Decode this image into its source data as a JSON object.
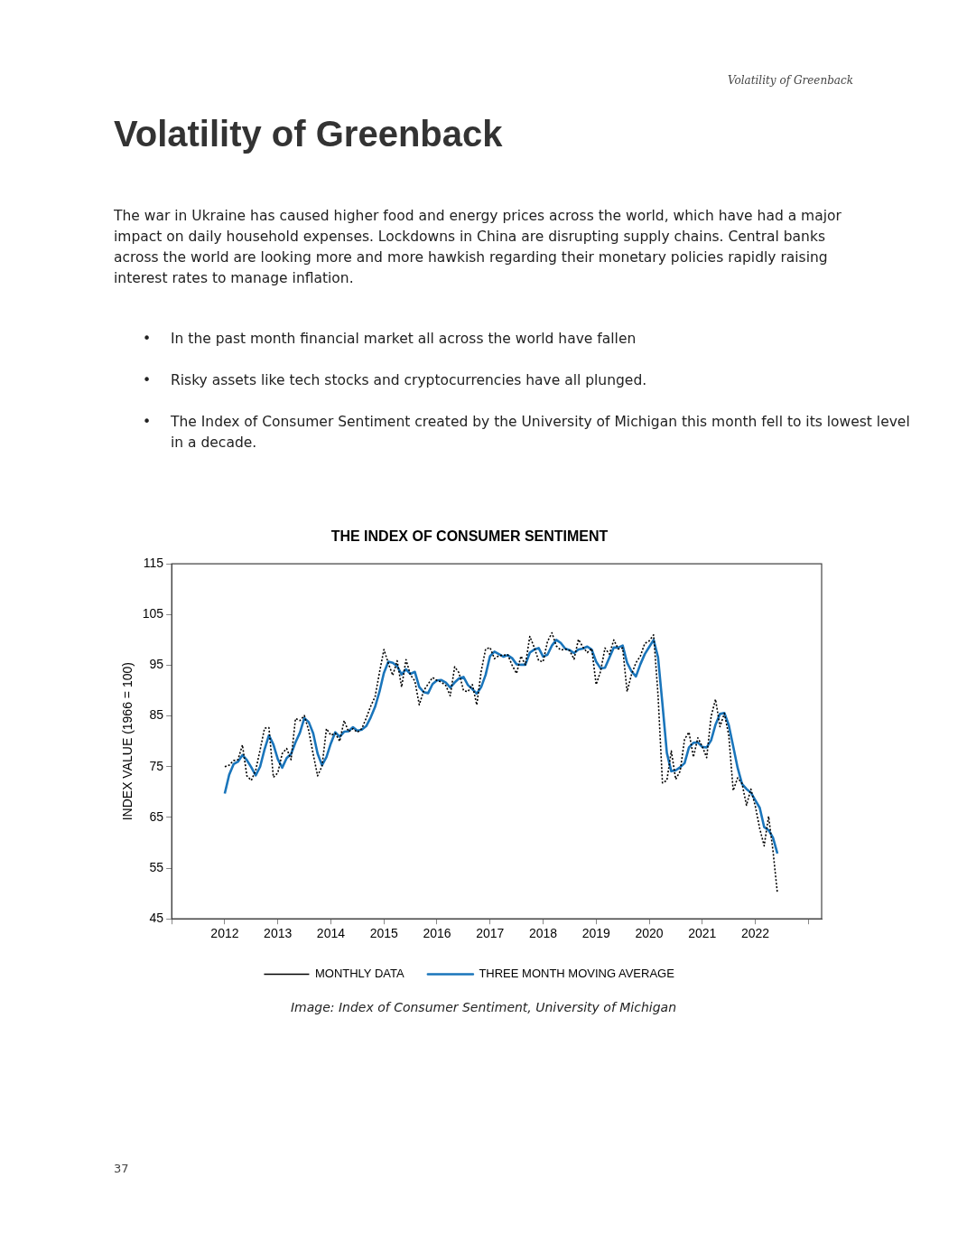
{
  "chart_data": {
    "type": "line",
    "title": "THE INDEX OF CONSUMER SENTIMENT",
    "ylabel": "INDEX VALUE (1966 = 100)",
    "annotations": [
      "Volatility of Greenback",
      "Volatility of Greenback",
      "The war in Ukraine has caused higher food and energy prices across the world, which have had a major impact on daily household expenses. Lockdowns in China are disrupting supply chains. Central banks across the world are looking more and more hawkish regarding their monetary policies rapidly raising interest rates to manage inflation.",
      "•",
      "In the past month financial market all across the world have fallen",
      "•",
      "Risky assets like tech stocks and cryptocurrencies have all plunged.",
      "•",
      "The Index of Consumer Sentiment created by the University of Michigan this month fell to its lowest level in a decade.",
      "Image: Index of Consumer Sentiment, University of Michigan",
      "37"
    ],
    "x": [
      "2012-01",
      "2012-02",
      "2012-03",
      "2012-04",
      "2012-05",
      "2012-06",
      "2012-07",
      "2012-08",
      "2012-09",
      "2012-10",
      "2012-11",
      "2012-12",
      "2013-01",
      "2013-02",
      "2013-03",
      "2013-04",
      "2013-05",
      "2013-06",
      "2013-07",
      "2013-08",
      "2013-09",
      "2013-10",
      "2013-11",
      "2013-12",
      "2014-01",
      "2014-02",
      "2014-03",
      "2014-04",
      "2014-05",
      "2014-06",
      "2014-07",
      "2014-08",
      "2014-09",
      "2014-10",
      "2014-11",
      "2014-12",
      "2015-01",
      "2015-02",
      "2015-03",
      "2015-04",
      "2015-05",
      "2015-06",
      "2015-07",
      "2015-08",
      "2015-09",
      "2015-10",
      "2015-11",
      "2015-12",
      "2016-01",
      "2016-02",
      "2016-03",
      "2016-04",
      "2016-05",
      "2016-06",
      "2016-07",
      "2016-08",
      "2016-09",
      "2016-10",
      "2016-11",
      "2016-12",
      "2017-01",
      "2017-02",
      "2017-03",
      "2017-04",
      "2017-05",
      "2017-06",
      "2017-07",
      "2017-08",
      "2017-09",
      "2017-10",
      "2017-11",
      "2017-12",
      "2018-01",
      "2018-02",
      "2018-03",
      "2018-04",
      "2018-05",
      "2018-06",
      "2018-07",
      "2018-08",
      "2018-09",
      "2018-10",
      "2018-11",
      "2018-12",
      "2019-01",
      "2019-02",
      "2019-03",
      "2019-04",
      "2019-05",
      "2019-06",
      "2019-07",
      "2019-08",
      "2019-09",
      "2019-10",
      "2019-11",
      "2019-12",
      "2020-01",
      "2020-02",
      "2020-03",
      "2020-04",
      "2020-05",
      "2020-06",
      "2020-07",
      "2020-08",
      "2020-09",
      "2020-10",
      "2020-11",
      "2020-12",
      "2021-01",
      "2021-02",
      "2021-03",
      "2021-04",
      "2021-05",
      "2021-06",
      "2021-07",
      "2021-08",
      "2021-09",
      "2021-10",
      "2021-11",
      "2021-12",
      "2022-01",
      "2022-02",
      "2022-03",
      "2022-04",
      "2022-05",
      "2022-06"
    ],
    "series": [
      {
        "name": "MONTHLY DATA",
        "color": "#000000",
        "line_style": "dotted",
        "values": [
          75.0,
          75.3,
          76.2,
          76.4,
          79.3,
          73.2,
          72.3,
          74.3,
          78.3,
          82.6,
          82.7,
          72.9,
          73.8,
          77.6,
          78.6,
          76.4,
          84.5,
          84.1,
          85.1,
          82.1,
          77.5,
          73.2,
          75.1,
          82.5,
          81.2,
          81.6,
          80.0,
          84.1,
          81.9,
          82.5,
          81.8,
          82.5,
          84.6,
          86.9,
          88.8,
          93.6,
          98.1,
          95.4,
          93.0,
          95.9,
          90.7,
          96.1,
          93.1,
          91.9,
          87.2,
          90.0,
          91.3,
          92.6,
          92.0,
          91.7,
          91.0,
          89.0,
          94.7,
          93.5,
          90.0,
          89.8,
          91.2,
          87.2,
          93.8,
          98.2,
          98.5,
          96.3,
          96.9,
          97.0,
          97.1,
          95.0,
          93.4,
          96.8,
          95.1,
          100.7,
          98.5,
          95.9,
          95.7,
          99.7,
          101.4,
          98.8,
          98.0,
          98.2,
          97.9,
          96.2,
          100.1,
          98.6,
          97.5,
          98.3,
          91.2,
          93.8,
          98.4,
          97.2,
          100.0,
          98.2,
          98.4,
          89.8,
          93.2,
          95.5,
          96.8,
          99.3,
          99.8,
          101.0,
          89.1,
          71.8,
          72.3,
          78.1,
          72.5,
          74.1,
          80.4,
          81.8,
          76.9,
          80.7,
          79.0,
          76.8,
          84.9,
          88.3,
          82.9,
          85.5,
          81.2,
          70.3,
          72.8,
          71.7,
          67.4,
          70.6,
          67.2,
          62.8,
          59.4,
          65.2,
          58.4,
          50.0
        ]
      },
      {
        "name": "THREE MONTH MOVING AVERAGE",
        "color": "#1a75bb",
        "line_style": "solid",
        "values": [
          69.7,
          73.4,
          75.5,
          76.0,
          77.3,
          76.3,
          74.9,
          73.3,
          75.0,
          78.4,
          81.2,
          79.4,
          76.5,
          74.8,
          76.7,
          77.5,
          79.8,
          81.7,
          84.6,
          83.8,
          81.6,
          77.6,
          75.3,
          76.9,
          79.6,
          81.8,
          80.9,
          81.9,
          82.0,
          82.8,
          82.1,
          82.3,
          83.0,
          84.7,
          86.8,
          89.8,
          93.5,
          95.7,
          95.5,
          94.8,
          93.2,
          94.2,
          93.3,
          93.7,
          90.7,
          89.7,
          89.5,
          91.3,
          92.0,
          92.1,
          91.6,
          90.6,
          91.6,
          92.4,
          92.7,
          91.1,
          90.3,
          89.4,
          90.7,
          93.1,
          96.8,
          97.7,
          97.2,
          96.7,
          97.0,
          96.4,
          95.2,
          95.1,
          95.1,
          97.5,
          98.1,
          98.4,
          96.7,
          97.1,
          98.9,
          100.0,
          99.4,
          98.3,
          98.0,
          97.4,
          98.1,
          98.3,
          98.7,
          98.1,
          95.7,
          94.4,
          94.5,
          96.5,
          98.5,
          98.5,
          98.9,
          95.5,
          93.8,
          92.8,
          95.2,
          97.2,
          98.6,
          100.0,
          96.6,
          87.3,
          77.7,
          74.1,
          74.3,
          74.9,
          75.7,
          78.8,
          79.7,
          79.8,
          78.9,
          78.8,
          80.2,
          83.3,
          85.4,
          85.6,
          83.2,
          79.0,
          74.8,
          71.6,
          70.6,
          69.9,
          68.4,
          66.9,
          63.1,
          62.5,
          61.0,
          57.9
        ]
      }
    ],
    "xlim": [
      "2011",
      "2023-04"
    ],
    "xticks": [
      {
        "value": "2011",
        "label": null
      },
      "2012",
      "2013",
      "2014",
      "2015",
      "2016",
      "2017",
      "2018",
      "2019",
      "2020",
      "2021",
      "2022",
      {
        "value": "2023",
        "label": null
      }
    ],
    "ylim": [
      45,
      115
    ],
    "yticks": [
      45,
      55,
      65,
      75,
      85,
      95,
      105,
      115
    ],
    "legend": "bottom",
    "marker": "none"
  }
}
